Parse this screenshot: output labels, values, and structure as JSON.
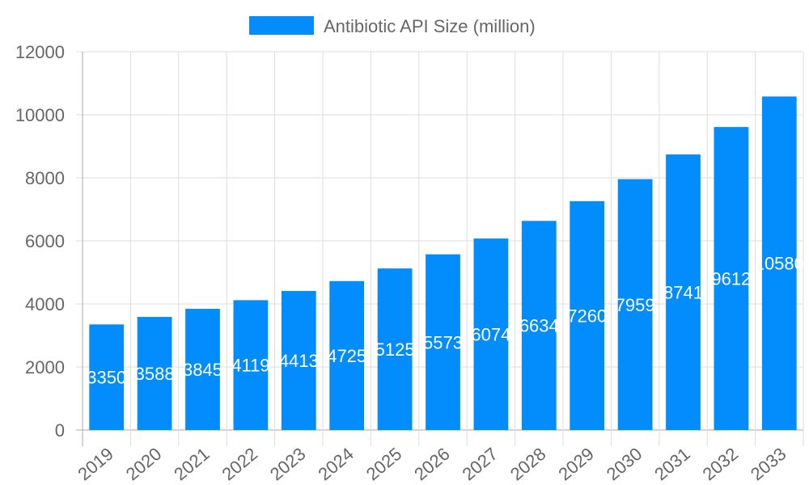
{
  "chart_data": {
    "type": "bar",
    "title": "",
    "xlabel": "",
    "ylabel": "",
    "categories": [
      "2019",
      "2020",
      "2021",
      "2022",
      "2023",
      "2024",
      "2025",
      "2026",
      "2027",
      "2028",
      "2029",
      "2030",
      "2031",
      "2032",
      "2033"
    ],
    "series": [
      {
        "name": "Antibiotic API Size (million)",
        "color": "#038cfc",
        "values": [
          3350,
          3588,
          3845,
          4119,
          4413,
          4725,
          5125,
          5573,
          6074,
          6634,
          7260,
          7959,
          8741,
          9612,
          10580
        ]
      }
    ],
    "ylim": [
      0,
      12000
    ],
    "yticks": [
      0,
      2000,
      4000,
      6000,
      8000,
      10000,
      12000
    ],
    "grid": true,
    "legend_position": "top",
    "data_labels": true,
    "data_label_color": "#ffffff"
  }
}
